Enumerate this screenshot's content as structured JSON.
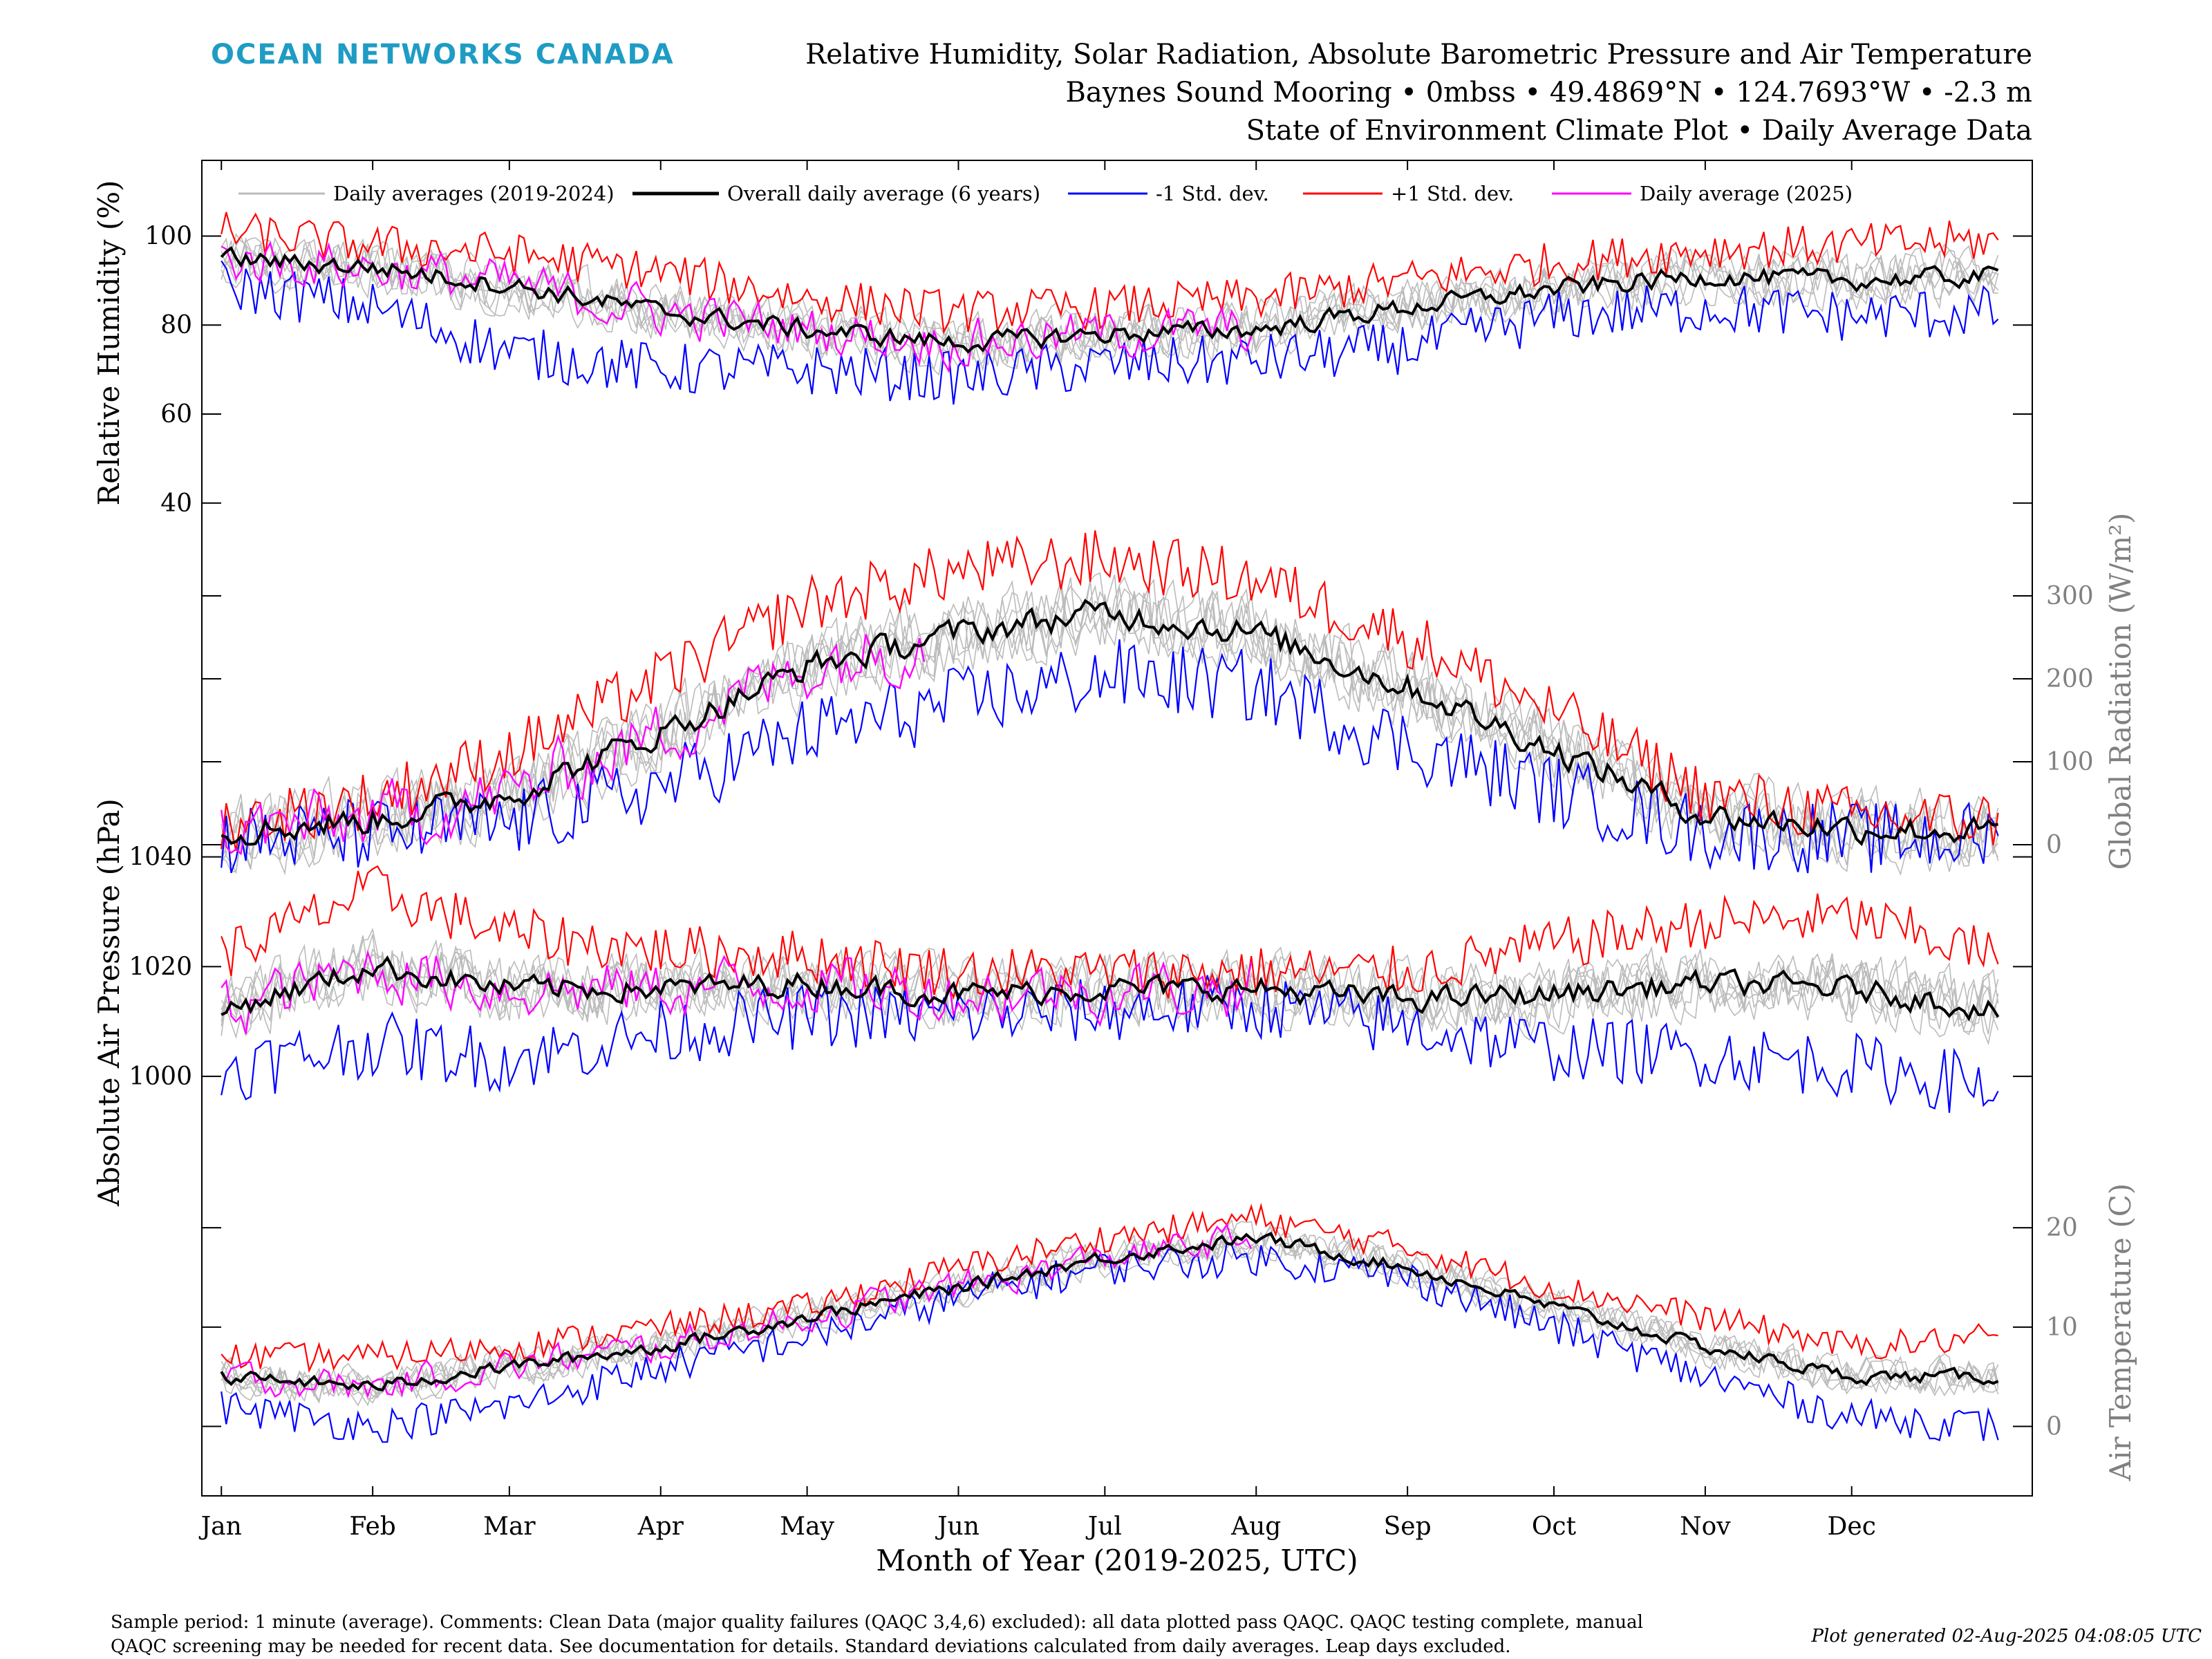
{
  "brand": {
    "text": "OCEAN NETWORKS CANADA",
    "color": "#1e9cc4"
  },
  "header": {
    "line1": "Relative Humidity, Solar Radiation, Absolute Barometric Pressure and Air Temperature",
    "line2": "Baynes Sound Mooring • 0mbss • 49.4869°N • 124.7693°W • -2.3 m",
    "line3": "State of Environment Climate Plot • Daily Average Data"
  },
  "legend": {
    "items": [
      {
        "label": "Daily averages (2019-2024)",
        "color": "#bbbbbb"
      },
      {
        "label": "Overall daily average (6 years)",
        "color": "#000000"
      },
      {
        "label": "-1 Std. dev.",
        "color": "#0000ff"
      },
      {
        "label": "+1 Std. dev.",
        "color": "#ff0000"
      },
      {
        "label": "Daily average (2025)",
        "color": "#ff00ff"
      }
    ]
  },
  "footer": {
    "note_line1": "Sample period: 1 minute (average). Comments: Clean Data (major quality failures (QAQC 3,4,6) excluded): all data plotted pass QAQC. QAQC testing complete, manual",
    "note_line2": "QAQC screening may be needed for recent data. See documentation for details. Standard deviations calculated from daily averages. Leap days excluded.",
    "generated": "Plot generated 02-Aug-2025 04:08:05 UTC"
  },
  "chart_data": {
    "type": "line",
    "xlabel": "Month of Year (2019-2025, UTC)",
    "x_ticks": [
      "Jan",
      "Feb",
      "Mar",
      "Apr",
      "May",
      "Jun",
      "Jul",
      "Aug",
      "Sep",
      "Oct",
      "Nov",
      "Dec"
    ],
    "x_tick_days": [
      1,
      32,
      60,
      91,
      121,
      152,
      182,
      213,
      244,
      274,
      305,
      335
    ],
    "xlim": [
      -3,
      372
    ],
    "colors": {
      "historical": "#bbbbbb",
      "mean": "#000000",
      "minus_sd": "#0000ff",
      "plus_sd": "#ff0000",
      "current_year": "#ff00ff",
      "right_axis": "#808080"
    },
    "panels": [
      {
        "name": "humidity",
        "ylabel": "Relative Humidity (%)",
        "axis_side": "left",
        "ylim": [
          35,
          117
        ],
        "yticks": [
          40,
          60,
          80,
          100
        ],
        "current_year_until_day": 212,
        "mean_anchors": [
          [
            1,
            95
          ],
          [
            32,
            93
          ],
          [
            60,
            89
          ],
          [
            91,
            83
          ],
          [
            121,
            79
          ],
          [
            152,
            76
          ],
          [
            182,
            78
          ],
          [
            213,
            79
          ],
          [
            244,
            84
          ],
          [
            274,
            88
          ],
          [
            305,
            91
          ],
          [
            335,
            90
          ],
          [
            365,
            91
          ]
        ],
        "plus_sd_anchors": [
          [
            1,
            101
          ],
          [
            32,
            98
          ],
          [
            60,
            96
          ],
          [
            91,
            92
          ],
          [
            121,
            86
          ],
          [
            152,
            83
          ],
          [
            182,
            84
          ],
          [
            213,
            86
          ],
          [
            244,
            90
          ],
          [
            274,
            94
          ],
          [
            305,
            97
          ],
          [
            335,
            98
          ],
          [
            365,
            99
          ]
        ],
        "minus_sd_anchors": [
          [
            1,
            89
          ],
          [
            32,
            84
          ],
          [
            60,
            74
          ],
          [
            91,
            70
          ],
          [
            121,
            70
          ],
          [
            152,
            68
          ],
          [
            182,
            71
          ],
          [
            213,
            72
          ],
          [
            244,
            75
          ],
          [
            274,
            82
          ],
          [
            305,
            84
          ],
          [
            335,
            82
          ],
          [
            365,
            83
          ]
        ],
        "noise": 4
      },
      {
        "name": "radiation",
        "ylabel": "Global Radiation (W/m²)",
        "axis_side": "right",
        "ylim": [
          -15,
          385
        ],
        "yticks": [
          0,
          100,
          200,
          300
        ],
        "current_year_until_day": 145,
        "mean_anchors": [
          [
            1,
            15
          ],
          [
            32,
            30
          ],
          [
            60,
            60
          ],
          [
            91,
            135
          ],
          [
            121,
            215
          ],
          [
            152,
            255
          ],
          [
            182,
            280
          ],
          [
            213,
            255
          ],
          [
            244,
            190
          ],
          [
            274,
            115
          ],
          [
            305,
            35
          ],
          [
            335,
            20
          ],
          [
            365,
            15
          ]
        ],
        "plus_sd_anchors": [
          [
            1,
            25
          ],
          [
            32,
            55
          ],
          [
            60,
            110
          ],
          [
            91,
            200
          ],
          [
            121,
            290
          ],
          [
            152,
            330
          ],
          [
            182,
            345
          ],
          [
            213,
            320
          ],
          [
            244,
            250
          ],
          [
            274,
            160
          ],
          [
            305,
            60
          ],
          [
            335,
            35
          ],
          [
            365,
            30
          ]
        ],
        "minus_sd_anchors": [
          [
            1,
            5
          ],
          [
            32,
            12
          ],
          [
            60,
            25
          ],
          [
            91,
            70
          ],
          [
            121,
            135
          ],
          [
            152,
            170
          ],
          [
            182,
            205
          ],
          [
            213,
            190
          ],
          [
            244,
            120
          ],
          [
            274,
            65
          ],
          [
            305,
            15
          ],
          [
            335,
            8
          ],
          [
            365,
            8
          ]
        ],
        "noise": 30
      },
      {
        "name": "pressure",
        "ylabel": "Absolute Air Pressure (hPa)",
        "axis_side": "left",
        "ylim": [
          982,
          1045
        ],
        "yticks": [
          1000,
          1020,
          1040
        ],
        "current_year_until_day": 212,
        "mean_anchors": [
          [
            1,
            1012
          ],
          [
            32,
            1020
          ],
          [
            60,
            1016
          ],
          [
            91,
            1016
          ],
          [
            121,
            1017
          ],
          [
            152,
            1015
          ],
          [
            182,
            1016
          ],
          [
            213,
            1016
          ],
          [
            244,
            1014
          ],
          [
            274,
            1015
          ],
          [
            305,
            1017
          ],
          [
            335,
            1016
          ],
          [
            365,
            1012
          ]
        ],
        "plus_sd_anchors": [
          [
            1,
            1022
          ],
          [
            32,
            1034
          ],
          [
            60,
            1026
          ],
          [
            91,
            1023
          ],
          [
            121,
            1022
          ],
          [
            152,
            1019
          ],
          [
            182,
            1019
          ],
          [
            213,
            1019
          ],
          [
            244,
            1019
          ],
          [
            274,
            1024
          ],
          [
            305,
            1028
          ],
          [
            335,
            1029
          ],
          [
            365,
            1022
          ]
        ],
        "minus_sd_anchors": [
          [
            1,
            1001
          ],
          [
            32,
            1006
          ],
          [
            60,
            1003
          ],
          [
            91,
            1008
          ],
          [
            121,
            1011
          ],
          [
            152,
            1011
          ],
          [
            182,
            1012
          ],
          [
            213,
            1013
          ],
          [
            244,
            1009
          ],
          [
            274,
            1005
          ],
          [
            305,
            1004
          ],
          [
            335,
            1002
          ],
          [
            365,
            998
          ]
        ],
        "noise": 4
      },
      {
        "name": "temperature",
        "ylabel": "Air Temperature (C)",
        "axis_side": "right",
        "ylim": [
          -7,
          26
        ],
        "yticks": [
          0,
          10,
          20
        ],
        "current_year_until_day": 212,
        "mean_anchors": [
          [
            1,
            5
          ],
          [
            32,
            4
          ],
          [
            60,
            6
          ],
          [
            91,
            8
          ],
          [
            121,
            11
          ],
          [
            152,
            14
          ],
          [
            182,
            17
          ],
          [
            213,
            19
          ],
          [
            244,
            16
          ],
          [
            274,
            12
          ],
          [
            305,
            8
          ],
          [
            335,
            5
          ],
          [
            365,
            5
          ]
        ],
        "plus_sd_anchors": [
          [
            1,
            7
          ],
          [
            32,
            7
          ],
          [
            60,
            8
          ],
          [
            91,
            10
          ],
          [
            121,
            12
          ],
          [
            152,
            16
          ],
          [
            182,
            19
          ],
          [
            213,
            21
          ],
          [
            244,
            18
          ],
          [
            274,
            14
          ],
          [
            305,
            11
          ],
          [
            335,
            8
          ],
          [
            365,
            9
          ]
        ],
        "minus_sd_anchors": [
          [
            1,
            2
          ],
          [
            32,
            0
          ],
          [
            60,
            2
          ],
          [
            91,
            6
          ],
          [
            121,
            9
          ],
          [
            152,
            13
          ],
          [
            182,
            16
          ],
          [
            213,
            17
          ],
          [
            244,
            15
          ],
          [
            274,
            10
          ],
          [
            305,
            5
          ],
          [
            335,
            1
          ],
          [
            365,
            0
          ]
        ],
        "noise": 1.2
      }
    ],
    "historical_series_count": 6,
    "grid": false,
    "legend_position": "top"
  }
}
